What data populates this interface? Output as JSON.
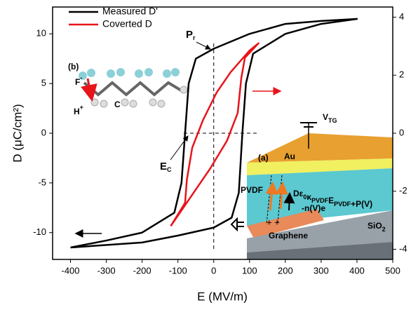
{
  "chart_data": {
    "type": "line",
    "x_label": "E (MV/m)",
    "y_label": "D (μC/cm²)",
    "xlim": [
      -450,
      500
    ],
    "xticks": [
      -400,
      -300,
      -200,
      -100,
      0,
      100,
      200,
      300,
      400,
      500
    ],
    "ylim": [
      -12.7,
      12.7
    ],
    "yticks": [
      -10,
      -5,
      0,
      5,
      10
    ],
    "y2lim": [
      -4.35,
      4.35
    ],
    "y2ticks": [
      -4,
      -2,
      0,
      2,
      4
    ],
    "series": [
      {
        "name": "Measured D'",
        "color": "#000000",
        "x": [
          -400,
          -200,
          -100,
          0,
          50,
          70,
          80,
          90,
          110,
          200,
          300,
          400,
          300,
          200,
          100,
          0,
          -50,
          -70,
          -80,
          -90,
          -110,
          -200,
          -300,
          -400
        ],
        "values": [
          -11.5,
          -11,
          -10.3,
          -9.5,
          -8.5,
          -6,
          0,
          5,
          8,
          10,
          11,
          11.5,
          11.3,
          11,
          10,
          8.5,
          7.5,
          5,
          0,
          -5,
          -8,
          -10,
          -10.8,
          -11.5
        ]
      },
      {
        "name": "Coverted D",
        "color": "#e8141a",
        "axis": "y2",
        "x": [
          -120,
          -90,
          -50,
          -10,
          37,
          67,
          77,
          87,
          125,
          100,
          47,
          8,
          -30,
          -60,
          -75,
          -80,
          -120
        ],
        "values": [
          -3.2,
          -2.66,
          -1.94,
          -1.22,
          -0.26,
          0.7,
          1.9,
          2.6,
          3.1,
          2.85,
          2.1,
          1.4,
          0.45,
          -0.5,
          -1.6,
          -2.4,
          -3.2
        ]
      }
    ],
    "annotations": [
      {
        "parts": [
          {
            "text": "P",
            "sub": "r"
          }
        ]
      },
      {
        "parts": [
          {
            "text": "E",
            "sub": "C"
          }
        ]
      },
      {
        "parts": [
          {
            "text": "(b)"
          }
        ]
      },
      {
        "parts": [
          {
            "text": "F",
            "sup": "-"
          }
        ]
      },
      {
        "parts": [
          {
            "text": "C"
          }
        ]
      },
      {
        "parts": [
          {
            "text": "H",
            "sup": "+"
          }
        ]
      },
      {
        "parts": [
          {
            "text": "(a)"
          }
        ]
      },
      {
        "parts": [
          {
            "text": "Au"
          }
        ]
      },
      {
        "parts": [
          {
            "text": "V",
            "sub": "TG"
          }
        ]
      },
      {
        "parts": [
          {
            "text": "PVDF"
          }
        ]
      },
      {
        "parts": [
          {
            "text": "Graphene"
          }
        ]
      },
      {
        "parts": [
          {
            "text": "SiO",
            "sub": "2"
          }
        ]
      },
      {
        "parts": [
          {
            "text": "-n(V)e"
          }
        ]
      },
      {
        "parts": [
          {
            "text": "D"
          },
          {
            "text": "ε",
            "sub": "0"
          },
          {
            "text": "κ",
            "sub": "PVDF"
          },
          {
            "text": "E",
            "sub": "PVDF"
          },
          {
            "text": "+P(V)"
          }
        ]
      }
    ]
  }
}
